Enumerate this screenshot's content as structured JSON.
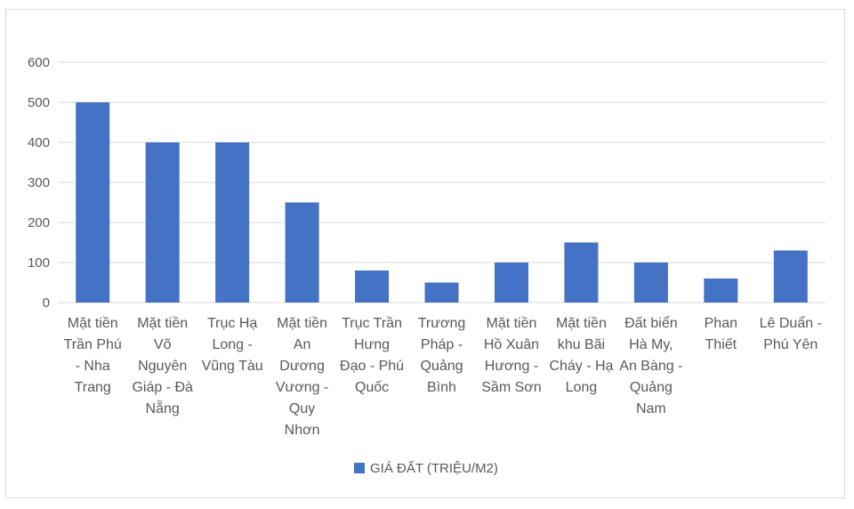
{
  "chart_data": {
    "type": "bar",
    "categories": [
      [
        "Mặt tiền",
        "Trần Phú",
        "- Nha",
        "Trang"
      ],
      [
        "Mặt tiền",
        "Võ",
        "Nguyên",
        "Giáp - Đà",
        "Nẵng"
      ],
      [
        "Trục Hạ",
        "Long -",
        "Vũng Tàu"
      ],
      [
        "Mặt tiền",
        "An",
        "Dương",
        "Vương -",
        "Quy",
        "Nhơn"
      ],
      [
        "Trục Trần",
        "Hưng",
        "Đạo - Phú",
        "Quốc"
      ],
      [
        "Trương",
        "Pháp -",
        "Quảng",
        "Bình"
      ],
      [
        "Mặt tiền",
        "Hồ Xuân",
        "Hương -",
        "Sầm Sơn"
      ],
      [
        "Mặt tiền",
        "khu Bãi",
        "Cháy - Hạ",
        "Long"
      ],
      [
        "Đất biển",
        "Hà My,",
        "An Bàng -",
        "Quảng",
        "Nam"
      ],
      [
        "Phan",
        "Thiết"
      ],
      [
        "Lê Duẩn -",
        "Phú Yên"
      ]
    ],
    "series": [
      {
        "name": "GIÁ ĐẤT (TRIỆU/M2)",
        "values": [
          500,
          400,
          400,
          250,
          80,
          50,
          100,
          150,
          100,
          60,
          130
        ]
      }
    ],
    "ylim": [
      0,
      600
    ],
    "yticks": [
      "0",
      "100",
      "200",
      "300",
      "400",
      "500",
      "600"
    ],
    "grid": true,
    "legend_position": "bottom",
    "bar_color": "#4472c4"
  }
}
